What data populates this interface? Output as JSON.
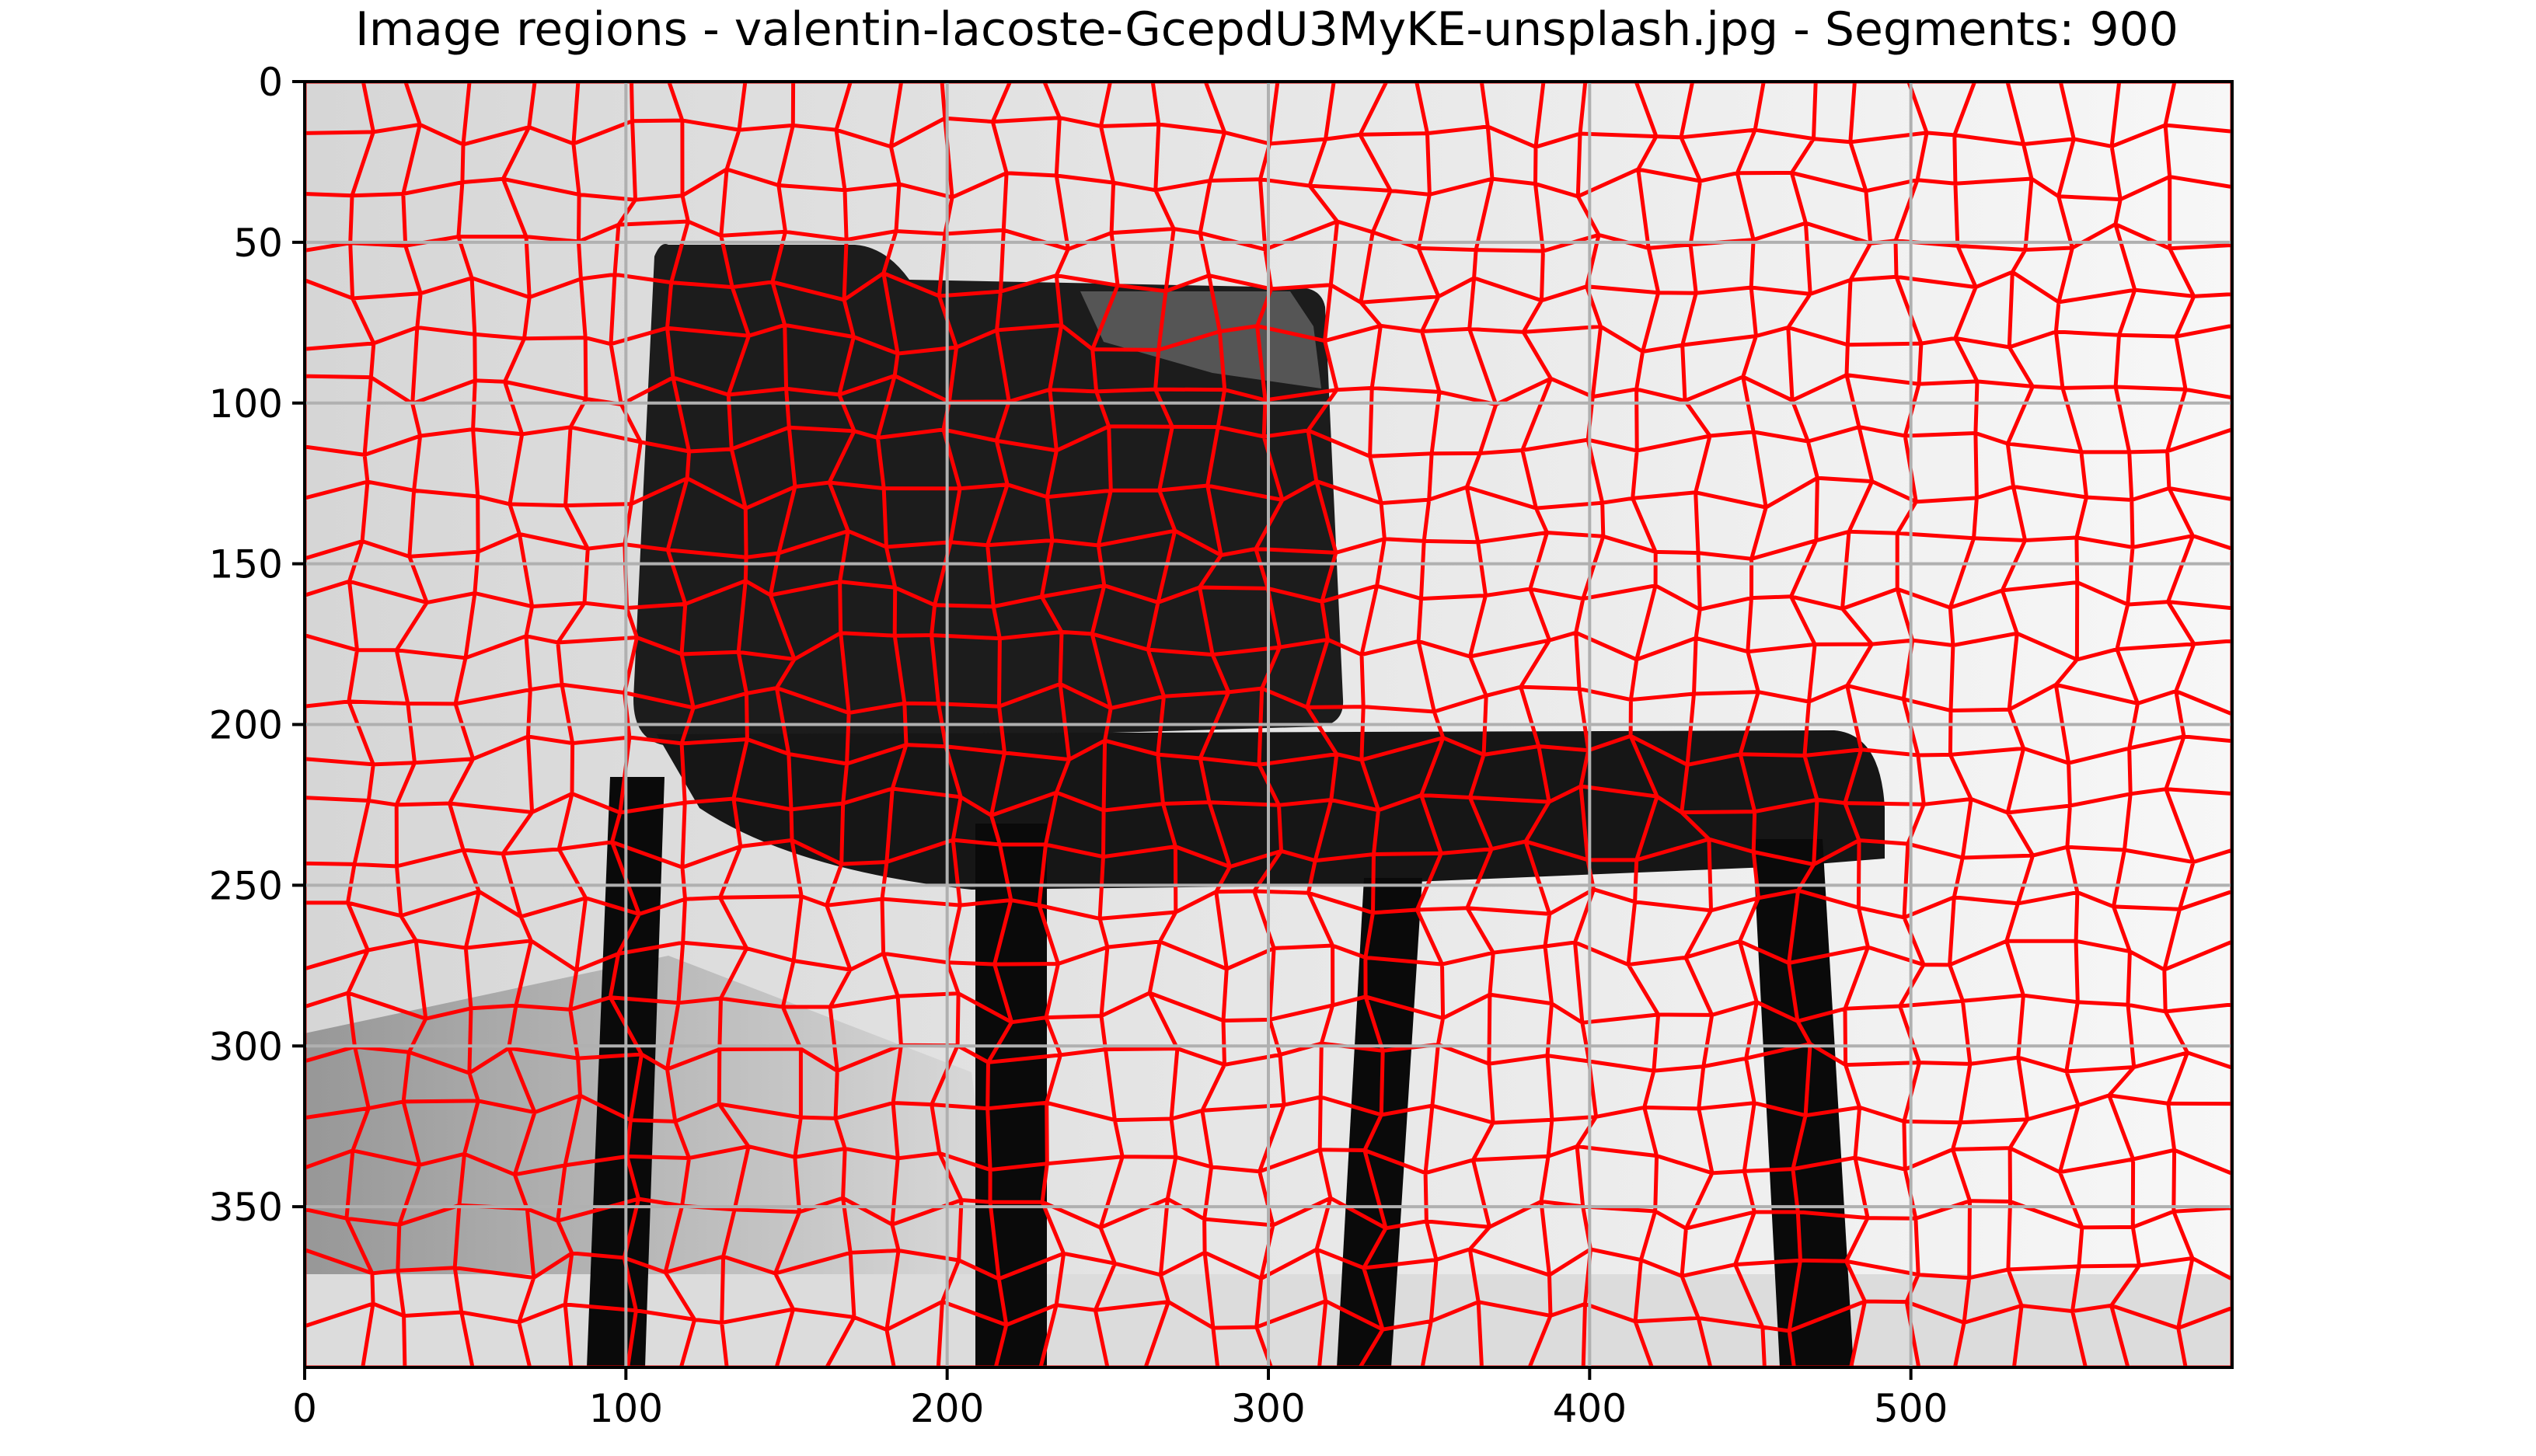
{
  "chart_data": {
    "type": "heatmap",
    "title": "Image regions - valentin-lacoste-GcepdU3MyKE-unsplash.jpg - Segments: 900",
    "xlabel": "",
    "ylabel": "",
    "xlim": [
      0,
      600
    ],
    "ylim": [
      400,
      0
    ],
    "xticks": [
      0,
      100,
      200,
      300,
      400,
      500
    ],
    "yticks": [
      0,
      50,
      100,
      150,
      200,
      250,
      300,
      350
    ],
    "grid": true,
    "segments": 900,
    "boundary_color": "#ff0000",
    "background_gradient": [
      "#d6d6d6",
      "#f7f7f7"
    ],
    "object_color": "#1c1c1c",
    "floor_color": "#a6a6a6"
  }
}
